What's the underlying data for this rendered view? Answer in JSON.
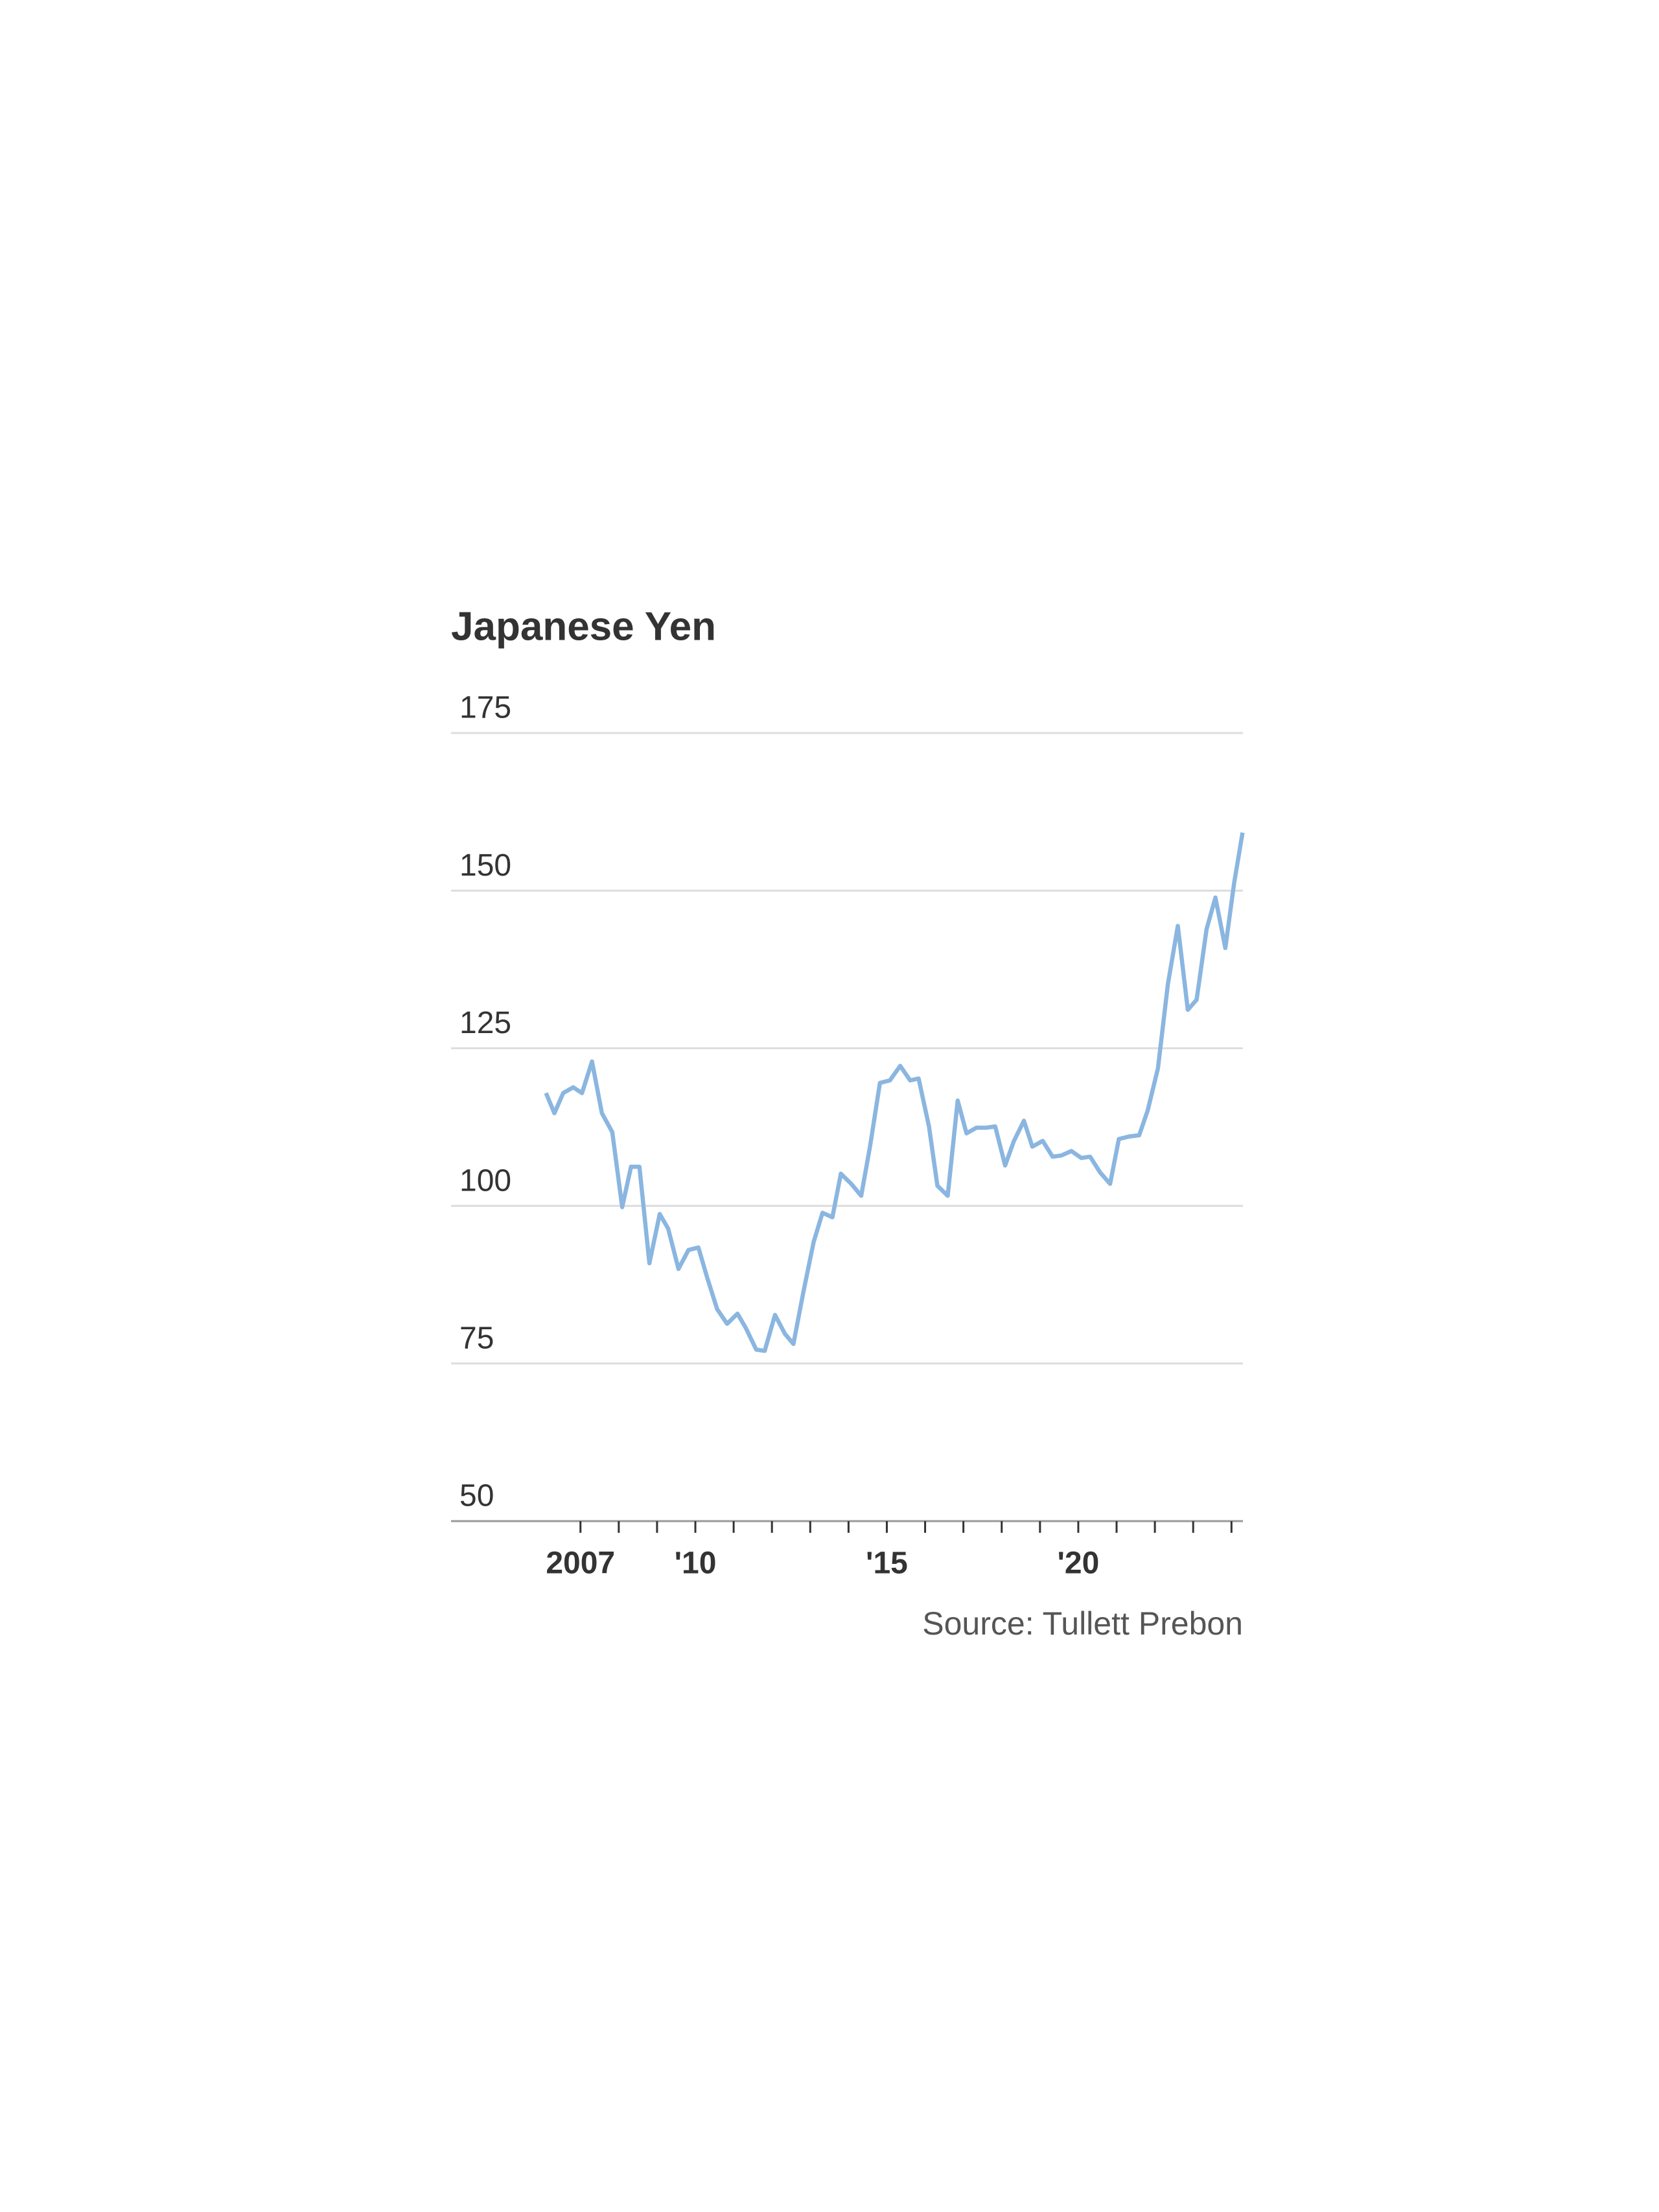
{
  "chart_data": {
    "type": "line",
    "title": "Japanese Yen",
    "source": "Source: Tullett Prebon",
    "x": [
      2006.1,
      2006.32,
      2006.55,
      2006.81,
      2007.04,
      2007.3,
      2007.56,
      2007.83,
      2008.09,
      2008.32,
      2008.54,
      2008.8,
      2009.07,
      2009.29,
      2009.56,
      2009.82,
      2010.08,
      2010.31,
      2010.57,
      2010.83,
      2011.1,
      2011.32,
      2011.59,
      2011.81,
      2012.08,
      2012.34,
      2012.56,
      2012.83,
      2013.09,
      2013.32,
      2013.58,
      2013.8,
      2014.07,
      2014.33,
      2014.56,
      2014.82,
      2015.08,
      2015.35,
      2015.61,
      2015.83,
      2016.1,
      2016.32,
      2016.59,
      2016.85,
      2017.08,
      2017.34,
      2017.6,
      2017.83,
      2018.09,
      2018.32,
      2018.58,
      2018.8,
      2019.07,
      2019.33,
      2019.56,
      2019.82,
      2020.08,
      2020.31,
      2020.57,
      2020.83,
      2021.06,
      2021.32,
      2021.59,
      2021.81,
      2022.08,
      2022.34,
      2022.6,
      2022.86,
      2023.09,
      2023.35,
      2023.58,
      2023.84,
      2024.07,
      2024.29
    ],
    "series": [
      {
        "name": "Japanese Yen",
        "color": "#8ab6e0",
        "values": [
          117.9,
          114.7,
          117.9,
          118.8,
          117.9,
          122.9,
          114.7,
          111.7,
          99.8,
          106.2,
          106.2,
          90.9,
          98.7,
          96.4,
          90.0,
          93.0,
          93.4,
          88.6,
          83.6,
          81.3,
          82.9,
          80.6,
          77.2,
          77.0,
          82.7,
          79.7,
          78.1,
          86.6,
          94.3,
          98.9,
          98.2,
          105.1,
          103.5,
          101.6,
          109.4,
          119.5,
          119.9,
          122.2,
          119.9,
          120.2,
          112.6,
          103.2,
          101.6,
          116.7,
          111.5,
          112.4,
          112.4,
          112.6,
          106.4,
          110.3,
          113.5,
          109.4,
          110.3,
          107.8,
          108.0,
          108.7,
          107.6,
          107.8,
          105.3,
          103.5,
          110.6,
          111.0,
          111.2,
          115.1,
          121.8,
          135.2,
          144.4,
          131.1,
          132.7,
          143.9,
          148.9,
          140.9,
          151.2,
          159.2
        ]
      }
    ],
    "xlim": [
      2003.62,
      2024.3
    ],
    "xticks": [
      2007,
      {
        "value": 2010,
        "label": "'10"
      },
      {
        "value": 2015,
        "label": "'15"
      },
      {
        "value": 2020,
        "label": "'20"
      }
    ],
    "xminor_ticks": [
      2008,
      2009,
      2011,
      2012,
      2013,
      2014,
      2016,
      2017,
      2018,
      2019,
      2021,
      2022,
      2023,
      2024
    ],
    "ylim": [
      50,
      175
    ],
    "yticks": [
      50,
      75,
      100,
      125,
      150,
      175
    ],
    "grid": true
  }
}
